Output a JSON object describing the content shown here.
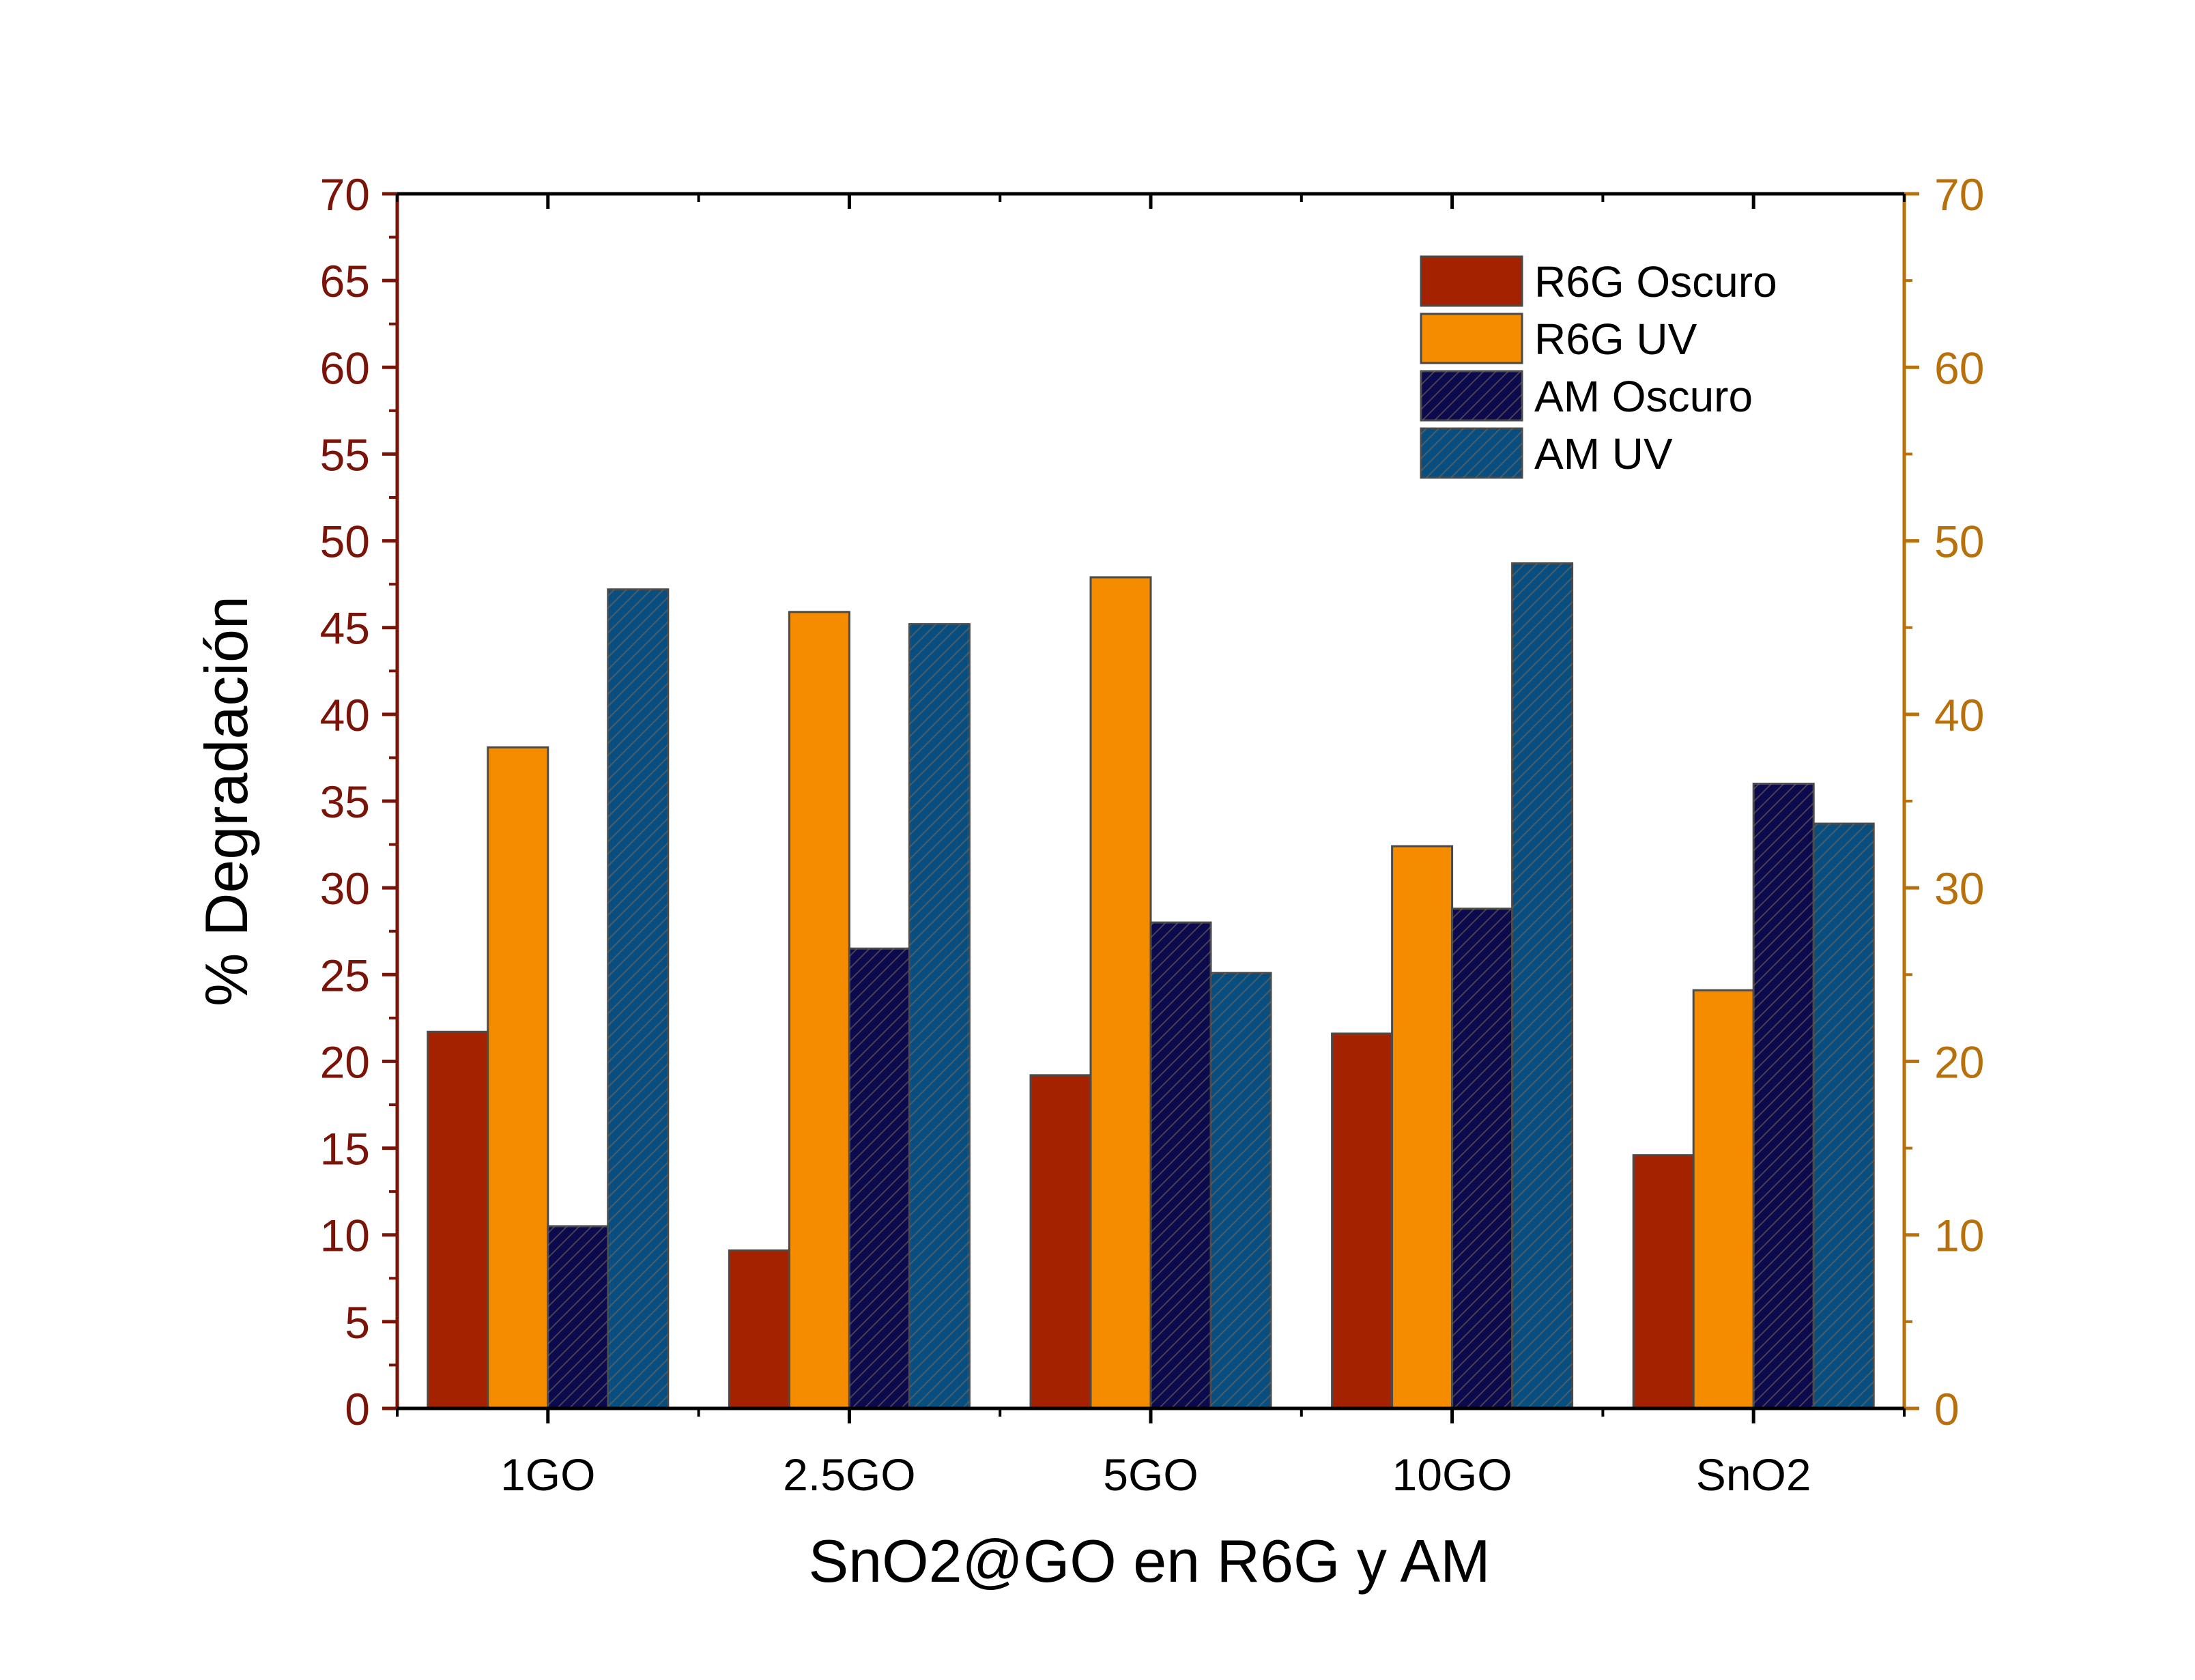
{
  "chart_data": {
    "type": "bar",
    "xlabel": "SnO2@GO en R6G y AM",
    "ylabel": "% Degradación",
    "categories": [
      "1GO",
      "2.5GO",
      "5GO",
      "10GO",
      "SnO2"
    ],
    "ylim": [
      0,
      70
    ],
    "yticks_left": [
      0,
      5,
      10,
      15,
      20,
      25,
      30,
      35,
      40,
      45,
      50,
      55,
      60,
      65,
      70
    ],
    "yticks_right": [
      0,
      10,
      20,
      30,
      40,
      50,
      60,
      70
    ],
    "legend_position": "top-right",
    "left_axis_color": "#7a1408",
    "right_axis_color": "#b8700a",
    "series": [
      {
        "name": "R6G Oscuro",
        "color": "#a52200",
        "hatch": false,
        "values": [
          21.7,
          9.1,
          19.2,
          21.6,
          14.6
        ]
      },
      {
        "name": "R6G UV",
        "color": "#f58c00",
        "hatch": false,
        "values": [
          38.1,
          45.9,
          47.9,
          32.4,
          24.1
        ]
      },
      {
        "name": "AM Oscuro",
        "color": "#0b0a4e",
        "hatch": true,
        "values": [
          10.5,
          26.5,
          28.0,
          28.8,
          36.0
        ]
      },
      {
        "name": "AM UV",
        "color": "#064f80",
        "hatch": true,
        "values": [
          47.2,
          45.2,
          25.1,
          48.7,
          33.7
        ]
      }
    ]
  }
}
